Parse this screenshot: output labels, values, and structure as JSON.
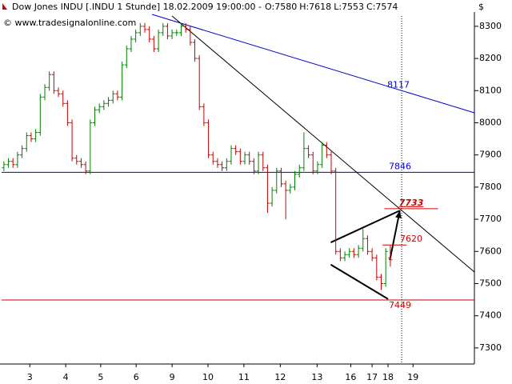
{
  "chart_data": {
    "type": "ohlc",
    "title": "Dow Jones INDU [.INDU  1 Stunde] 18.02.2009 19:00:00 -",
    "title_parts": [
      {
        "text": "O:7580",
        "color": "#cc0000"
      },
      {
        "text": "H:7618",
        "color": "#000000"
      },
      {
        "text": "L:7553",
        "color": "#000000"
      },
      {
        "text": "C:7574",
        "color": "#cc0000"
      }
    ],
    "subtitle": "© www.tradesignalonline.com",
    "y_axis_label": "$",
    "up_color": "#008000",
    "down_color": "#cc0000",
    "xlim": [
      -0.5,
      103.5
    ],
    "ylim": [
      7250,
      8332
    ],
    "yticks": [
      7300,
      7400,
      7500,
      7600,
      7700,
      7800,
      7900,
      8000,
      8100,
      8200,
      8300
    ],
    "xticks": [
      {
        "value": 5.7,
        "label": "3"
      },
      {
        "value": 13.6,
        "label": "4"
      },
      {
        "value": 21.3,
        "label": "5"
      },
      {
        "value": 29.1,
        "label": "6"
      },
      {
        "value": 37.0,
        "label": "9"
      },
      {
        "value": 44.9,
        "label": "10"
      },
      {
        "value": 52.8,
        "label": "11"
      },
      {
        "value": 60.8,
        "label": "12"
      },
      {
        "value": 68.9,
        "label": "13"
      },
      {
        "value": 76.3,
        "label": "16"
      },
      {
        "value": 81.0,
        "label": "17"
      },
      {
        "value": 84.5,
        "label": "18"
      },
      {
        "value": 90.0,
        "label": "19"
      }
    ],
    "open": [
      7860,
      7870,
      7880,
      7870,
      7900,
      7920,
      7960,
      7950,
      7970,
      8080,
      8110,
      8150,
      8100,
      8090,
      8060,
      8000,
      7890,
      7880,
      7870,
      7850,
      8000,
      8040,
      8050,
      8060,
      8070,
      8090,
      8080,
      8180,
      8230,
      8260,
      8280,
      8300,
      8290,
      8260,
      8230,
      8280,
      8300,
      8270,
      8280,
      8280,
      8300,
      8290,
      8250,
      8200,
      8050,
      8000,
      7900,
      7880,
      7870,
      7860,
      7880,
      7920,
      7910,
      7880,
      7900,
      7880,
      7850,
      7900,
      7860,
      7750,
      7790,
      7850,
      7810,
      7790,
      7800,
      7840,
      7860,
      7920,
      7900,
      7850,
      7870,
      7930,
      7900,
      7850,
      7600,
      7580,
      7590,
      7600,
      7590,
      7610,
      7640,
      7600,
      7580,
      7520,
      7500,
      7580
    ],
    "high": [
      7880,
      7890,
      7890,
      7910,
      7930,
      7970,
      7970,
      7980,
      8090,
      8120,
      8160,
      8160,
      8110,
      8100,
      8070,
      8010,
      7900,
      7890,
      7880,
      8010,
      8050,
      8060,
      8070,
      8080,
      8100,
      8100,
      8190,
      8240,
      8270,
      8290,
      8310,
      8310,
      8300,
      8270,
      8290,
      8310,
      8310,
      8290,
      8290,
      8310,
      8310,
      8300,
      8260,
      8210,
      8060,
      8010,
      7910,
      7890,
      7880,
      7890,
      7930,
      7930,
      7920,
      7910,
      7910,
      7890,
      7910,
      7910,
      7870,
      7800,
      7860,
      7860,
      7820,
      7810,
      7850,
      7870,
      7970,
      7930,
      7910,
      7880,
      7940,
      7940,
      7910,
      7860,
      7610,
      7600,
      7610,
      7610,
      7620,
      7670,
      7650,
      7610,
      7590,
      7530,
      7610,
      7618
    ],
    "low": [
      7850,
      7860,
      7860,
      7860,
      7890,
      7910,
      7940,
      7940,
      7960,
      8070,
      8100,
      8090,
      8080,
      8050,
      7990,
      7880,
      7870,
      7860,
      7840,
      7840,
      7990,
      8030,
      8040,
      8050,
      8060,
      8070,
      8070,
      8170,
      8220,
      8250,
      8270,
      8280,
      8250,
      8220,
      8220,
      8270,
      8260,
      8260,
      8270,
      8270,
      8280,
      8240,
      8190,
      8040,
      7990,
      7890,
      7870,
      7860,
      7850,
      7850,
      7870,
      7900,
      7870,
      7870,
      7870,
      7840,
      7840,
      7850,
      7720,
      7740,
      7780,
      7800,
      7700,
      7780,
      7790,
      7830,
      7850,
      7890,
      7840,
      7840,
      7860,
      7890,
      7840,
      7590,
      7570,
      7570,
      7580,
      7580,
      7580,
      7600,
      7590,
      7570,
      7510,
      7480,
      7490,
      7553
    ],
    "close": [
      7870,
      7880,
      7870,
      7900,
      7920,
      7960,
      7950,
      7970,
      8080,
      8110,
      8150,
      8100,
      8090,
      8060,
      8000,
      7890,
      7880,
      7870,
      7850,
      8000,
      8040,
      8050,
      8060,
      8070,
      8090,
      8080,
      8180,
      8230,
      8260,
      8280,
      8300,
      8290,
      8260,
      8230,
      8280,
      8300,
      8270,
      8280,
      8280,
      8300,
      8290,
      8250,
      8200,
      8050,
      8000,
      7900,
      7880,
      7870,
      7860,
      7880,
      7920,
      7910,
      7880,
      7900,
      7880,
      7850,
      7900,
      7860,
      7750,
      7790,
      7850,
      7810,
      7790,
      7800,
      7840,
      7860,
      7920,
      7900,
      7850,
      7870,
      7930,
      7900,
      7850,
      7600,
      7580,
      7590,
      7600,
      7590,
      7610,
      7640,
      7600,
      7580,
      7520,
      7500,
      7600,
      7574
    ],
    "hlines": [
      {
        "value": 7846,
        "color": "#0000cc"
      },
      {
        "value": 7449,
        "color": "#cc0000"
      }
    ],
    "segments": [
      {
        "value": 7733,
        "x": [
          83.7,
          95.5
        ],
        "color": "#cc0000",
        "bold": true
      },
      {
        "value": 7620,
        "x": [
          83.3,
          88.6
        ],
        "color": "#cc0000",
        "bold": false
      }
    ],
    "labels": [
      {
        "value": 8117,
        "color": "#0000cc"
      }
    ],
    "trendlines": [
      {
        "x": [
          32.6,
          103.5
        ],
        "y": [
          8337,
          8031
        ],
        "color": "#0000cc"
      },
      {
        "x": [
          37.0,
          103.5
        ],
        "y": [
          8332,
          7536
        ],
        "color": "#000000"
      },
      {
        "x": [
          71.9,
          87.1
        ],
        "y": [
          7628,
          7727
        ],
        "color": "#000000"
      },
      {
        "x": [
          71.9,
          84.5
        ],
        "y": [
          7559,
          7452
        ],
        "color": "#000000"
      },
      {
        "x": [
          84.9,
          87.1
        ],
        "y": [
          7573,
          7727
        ],
        "color": "#000000"
      }
    ],
    "cursor_x": 87.5
  }
}
